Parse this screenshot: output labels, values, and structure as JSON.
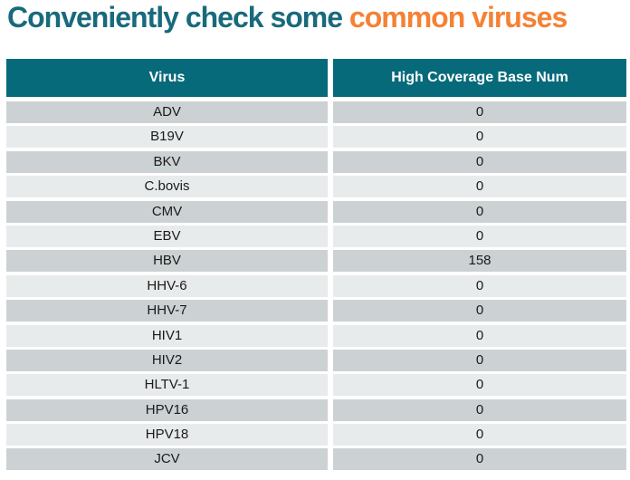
{
  "title": {
    "part1": "Conveniently check some ",
    "part2": "common viruses"
  },
  "colors": {
    "title_teal": "#186a7c",
    "title_orange": "#f58134",
    "header_bg": "#076a7a",
    "header_text": "#ffffff",
    "row_dark": "#ccd2d4",
    "row_light": "#e8ebeb",
    "row_text": "#1a1a1a"
  },
  "chart_data": {
    "type": "table",
    "title": "Conveniently check some common viruses",
    "columns": [
      "Virus",
      "High Coverage Base Num"
    ],
    "rows": [
      [
        "ADV",
        0
      ],
      [
        "B19V",
        0
      ],
      [
        "BKV",
        0
      ],
      [
        "C.bovis",
        0
      ],
      [
        "CMV",
        0
      ],
      [
        "EBV",
        0
      ],
      [
        "HBV",
        158
      ],
      [
        "HHV-6",
        0
      ],
      [
        "HHV-7",
        0
      ],
      [
        "HIV1",
        0
      ],
      [
        "HIV2",
        0
      ],
      [
        "HLTV-1",
        0
      ],
      [
        "HPV16",
        0
      ],
      [
        "HPV18",
        0
      ],
      [
        "JCV",
        0
      ]
    ],
    "layout": {
      "row_striping": [
        "dark",
        "light"
      ],
      "header_style": "teal-filled",
      "cell_alignment": "center"
    }
  }
}
